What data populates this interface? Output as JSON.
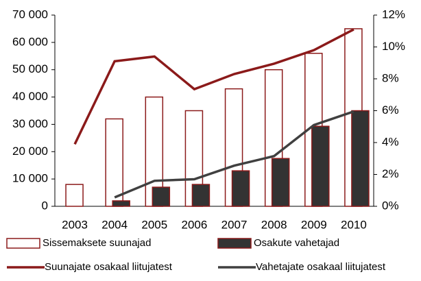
{
  "chart_data": {
    "type": "bar_line",
    "categories": [
      "2003",
      "2004",
      "2005",
      "2006",
      "2007",
      "2008",
      "2009",
      "2010"
    ],
    "series": [
      {
        "name": "Sissemaksete suunajad",
        "type": "bar",
        "fill": "#ffffff",
        "color": "#8b1a1a",
        "values": [
          8000,
          32000,
          40000,
          35000,
          43000,
          50000,
          56000,
          65000
        ]
      },
      {
        "name": "Osakute vahetajad",
        "type": "bar",
        "fill": "#333333",
        "color": "#8b1a1a",
        "values": [
          0,
          2000,
          7000,
          8000,
          13000,
          17500,
          29300,
          35000
        ]
      },
      {
        "name": "Suunajate osakaal liitujatest",
        "type": "line",
        "axis": "y2",
        "color": "#8b1a1a",
        "values": [
          3.9,
          9.1,
          9.4,
          7.35,
          8.3,
          8.95,
          9.8,
          11.1
        ]
      },
      {
        "name": "Vahetajate osakaal liitujatest",
        "type": "line",
        "axis": "y2",
        "color": "#404040",
        "values": [
          null,
          0.56,
          1.6,
          1.7,
          2.55,
          3.15,
          5.1,
          5.95
        ]
      }
    ],
    "ylim": [
      0,
      70000
    ],
    "yticks": [
      0,
      {
        "value": 10000,
        "label": "10 000"
      },
      {
        "value": 20000,
        "label": "20 000"
      },
      {
        "value": 30000,
        "label": "30 000"
      },
      {
        "value": 40000,
        "label": "40 000"
      },
      {
        "value": 50000,
        "label": "50 000"
      },
      {
        "value": 60000,
        "label": "60 000"
      },
      {
        "value": 70000,
        "label": "70 000"
      }
    ],
    "y2lim": [
      0,
      12
    ],
    "y2ticks": [
      {
        "value": 0,
        "label": "0%"
      },
      {
        "value": 2,
        "label": "2%"
      },
      {
        "value": 4,
        "label": "4%"
      },
      {
        "value": 6,
        "label": "6%"
      },
      {
        "value": 8,
        "label": "8%"
      },
      {
        "value": 10,
        "label": "10%"
      },
      {
        "value": 12,
        "label": "12%"
      }
    ]
  }
}
